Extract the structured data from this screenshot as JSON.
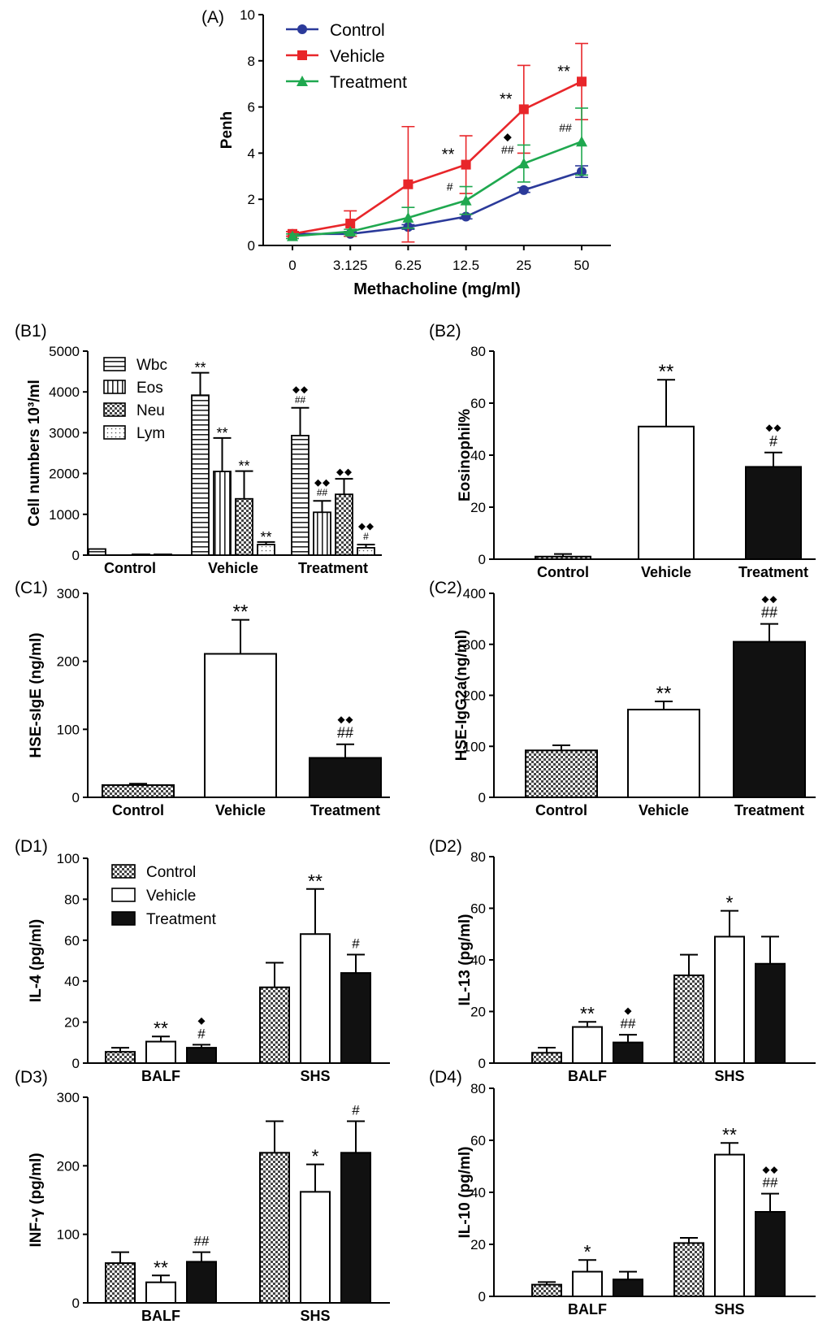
{
  "figure": {
    "background": "#ffffff"
  },
  "colors": {
    "control_line": "#2B3A9A",
    "vehicle_line": "#E8262A",
    "treatment_line": "#1FA84F",
    "bar_edge": "#000000",
    "bar_solid": "#111111"
  },
  "icons": {
    "diamond": "black-diamond-marker",
    "checker": "checkered-fill-pattern",
    "hstripe": "horizontal-stripe-fill-pattern",
    "vstripe": "vertical-stripe-fill-pattern",
    "dots": "dotted-fill-pattern"
  },
  "chart_data": [
    {
      "id": "A",
      "panel_label": "(A)",
      "type": "line",
      "xlabel": "Methacholine (mg/ml)",
      "ylabel": "Penh",
      "ylim": [
        0,
        10
      ],
      "yticks": [
        "0",
        "2",
        "4",
        "6",
        "8",
        "10"
      ],
      "categories": [
        "0",
        "3.125",
        "6.25",
        "12.5",
        "25",
        "50"
      ],
      "legend_position": "top-left",
      "series": [
        {
          "name": "Control",
          "color": "#2B3A9A",
          "marker": "circle",
          "values": [
            0.5,
            0.5,
            0.8,
            1.25,
            2.4,
            3.2
          ],
          "errors": [
            0.1,
            0.1,
            0.1,
            0.1,
            0.1,
            0.25
          ],
          "annotations": [
            "",
            "",
            "",
            "",
            "",
            ""
          ]
        },
        {
          "name": "Vehicle",
          "color": "#E8262A",
          "marker": "square",
          "values": [
            0.5,
            0.95,
            2.65,
            3.5,
            5.9,
            7.1
          ],
          "errors": [
            0.1,
            0.55,
            2.5,
            1.25,
            1.9,
            1.65
          ],
          "annotations": [
            "",
            "",
            "",
            "**",
            "**",
            "**"
          ]
        },
        {
          "name": "Treatment",
          "color": "#1FA84F",
          "marker": "triangle",
          "values": [
            0.4,
            0.6,
            1.2,
            1.95,
            3.55,
            4.5
          ],
          "errors": [
            0.1,
            0.1,
            0.45,
            0.6,
            0.8,
            1.45
          ],
          "annotations": [
            "",
            "",
            "",
            "#",
            "##◆",
            "##"
          ]
        }
      ]
    },
    {
      "id": "B1",
      "panel_label": "(B1)",
      "type": "bar",
      "ylabel": "Cell numbers 10³/ml",
      "ylim": [
        0,
        5000
      ],
      "yticks": [
        "0",
        "1000",
        "2000",
        "3000",
        "4000",
        "5000"
      ],
      "categories": [
        "Control",
        "Vehicle",
        "Treatment"
      ],
      "legend_position": "top-left",
      "series": [
        {
          "name": "Wbc",
          "pattern": "hstripe",
          "values": [
            150,
            3920,
            2930
          ],
          "errors": [
            0,
            550,
            680
          ],
          "annotations": [
            "",
            "**",
            "##◆◆"
          ]
        },
        {
          "name": "Eos",
          "pattern": "vstripe",
          "values": [
            0,
            2050,
            1050
          ],
          "errors": [
            0,
            820,
            280
          ],
          "annotations": [
            "",
            "**",
            "##◆◆"
          ]
        },
        {
          "name": "Neu",
          "pattern": "checker",
          "values": [
            20,
            1380,
            1490
          ],
          "errors": [
            0,
            680,
            380
          ],
          "annotations": [
            "",
            "**",
            "◆◆"
          ]
        },
        {
          "name": "Lym",
          "pattern": "dots",
          "values": [
            20,
            260,
            180
          ],
          "errors": [
            0,
            60,
            80
          ],
          "annotations": [
            "",
            "**",
            "#◆◆"
          ]
        }
      ]
    },
    {
      "id": "B2",
      "panel_label": "(B2)",
      "type": "bar",
      "ylabel": "Eosinophil%",
      "ylim": [
        0,
        80
      ],
      "yticks": [
        "0",
        "20",
        "40",
        "60",
        "80"
      ],
      "categories": [
        "Control",
        "Vehicle",
        "Treatment"
      ],
      "series": [
        {
          "name": "",
          "values": [
            1,
            51,
            35.5
          ],
          "errors": [
            1,
            18,
            5.5
          ],
          "patterns": [
            "checker",
            "white",
            "solid"
          ],
          "annotations": [
            "",
            "**",
            "#◆◆"
          ]
        }
      ]
    },
    {
      "id": "C1",
      "panel_label": "(C1)",
      "type": "bar",
      "ylabel": "HSE-sIgE (ng/ml)",
      "ylim": [
        0,
        300
      ],
      "yticks": [
        "0",
        "100",
        "200",
        "300"
      ],
      "categories": [
        "Control",
        "Vehicle",
        "Treatment"
      ],
      "series": [
        {
          "name": "",
          "values": [
            18,
            211,
            58
          ],
          "errors": [
            2,
            50,
            20
          ],
          "patterns": [
            "checker",
            "white",
            "solid"
          ],
          "annotations": [
            "",
            "**",
            "##◆◆"
          ]
        }
      ]
    },
    {
      "id": "C2",
      "panel_label": "(C2)",
      "type": "bar",
      "ylabel": "HSE-IgG2a(ng/ml)",
      "ylim": [
        0,
        400
      ],
      "yticks": [
        "0",
        "100",
        "200",
        "300",
        "400"
      ],
      "categories": [
        "Control",
        "Vehicle",
        "Treatment"
      ],
      "series": [
        {
          "name": "",
          "values": [
            92,
            172,
            305
          ],
          "errors": [
            10,
            16,
            35
          ],
          "patterns": [
            "checker",
            "white",
            "solid"
          ],
          "annotations": [
            "",
            "**",
            "##◆◆"
          ]
        }
      ]
    },
    {
      "id": "D1",
      "panel_label": "(D1)",
      "type": "bar",
      "ylabel": "IL-4 (pg/ml)",
      "ylim": [
        0,
        100
      ],
      "yticks": [
        "0",
        "20",
        "40",
        "60",
        "80",
        "100"
      ],
      "categories": [
        "BALF",
        "SHS"
      ],
      "legend_position": "top-left",
      "series": [
        {
          "name": "Control",
          "pattern": "checker",
          "values": [
            5.5,
            37
          ],
          "errors": [
            2,
            12
          ],
          "annotations": [
            "",
            ""
          ]
        },
        {
          "name": "Vehicle",
          "pattern": "white",
          "values": [
            10.5,
            63
          ],
          "errors": [
            2.5,
            22
          ],
          "annotations": [
            "**",
            "**"
          ]
        },
        {
          "name": "Treatment",
          "pattern": "solid",
          "values": [
            7.5,
            44
          ],
          "errors": [
            1.5,
            9
          ],
          "annotations": [
            "#◆",
            "#"
          ]
        }
      ]
    },
    {
      "id": "D2",
      "panel_label": "(D2)",
      "type": "bar",
      "ylabel": "IL-13 (pg/ml)",
      "ylim": [
        0,
        80
      ],
      "yticks": [
        "0",
        "20",
        "40",
        "60",
        "80"
      ],
      "categories": [
        "BALF",
        "SHS"
      ],
      "series": [
        {
          "name": "Control",
          "pattern": "checker",
          "values": [
            4,
            34
          ],
          "errors": [
            2,
            8
          ],
          "annotations": [
            "",
            ""
          ]
        },
        {
          "name": "Vehicle",
          "pattern": "white",
          "values": [
            14,
            49
          ],
          "errors": [
            2,
            10
          ],
          "annotations": [
            "**",
            "*"
          ]
        },
        {
          "name": "Treatment",
          "pattern": "solid",
          "values": [
            8,
            38.5
          ],
          "errors": [
            3,
            10.5
          ],
          "annotations": [
            "##◆",
            ""
          ]
        }
      ]
    },
    {
      "id": "D3",
      "panel_label": "(D3)",
      "type": "bar",
      "ylabel": "INF-γ (pg/ml)",
      "ylim": [
        0,
        300
      ],
      "yticks": [
        "0",
        "100",
        "200",
        "300"
      ],
      "categories": [
        "BALF",
        "SHS"
      ],
      "series": [
        {
          "name": "Control",
          "pattern": "checker",
          "values": [
            58,
            219
          ],
          "errors": [
            16,
            46
          ],
          "annotations": [
            "",
            ""
          ]
        },
        {
          "name": "Vehicle",
          "pattern": "white",
          "values": [
            30,
            162
          ],
          "errors": [
            10,
            40
          ],
          "annotations": [
            "**",
            "*"
          ]
        },
        {
          "name": "Treatment",
          "pattern": "solid",
          "values": [
            60,
            219
          ],
          "errors": [
            14,
            46
          ],
          "annotations": [
            "##",
            "#"
          ]
        }
      ]
    },
    {
      "id": "D4",
      "panel_label": "(D4)",
      "type": "bar",
      "ylabel": "IL-10 (pg/ml)",
      "ylim": [
        0,
        80
      ],
      "yticks": [
        "0",
        "20",
        "40",
        "60",
        "80"
      ],
      "categories": [
        "BALF",
        "SHS"
      ],
      "series": [
        {
          "name": "Control",
          "pattern": "checker",
          "values": [
            4.5,
            20.5
          ],
          "errors": [
            1,
            2
          ],
          "annotations": [
            "",
            ""
          ]
        },
        {
          "name": "Vehicle",
          "pattern": "white",
          "values": [
            9.5,
            54.5
          ],
          "errors": [
            4.5,
            4.5
          ],
          "annotations": [
            "*",
            "**"
          ]
        },
        {
          "name": "Treatment",
          "pattern": "solid",
          "values": [
            6.5,
            32.5
          ],
          "errors": [
            3,
            7
          ],
          "annotations": [
            "",
            "##◆◆"
          ]
        }
      ]
    }
  ]
}
